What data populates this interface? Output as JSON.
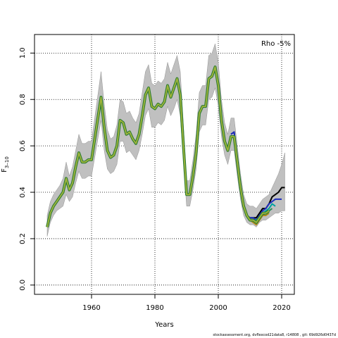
{
  "chart_data": {
    "type": "line",
    "xlabel": "Years",
    "ylabel_main": "F",
    "ylabel_sub": "3–10",
    "annotation": "Rho -5%",
    "xlim": [
      1942,
      2024
    ],
    "ylim": [
      -0.04,
      1.08
    ],
    "xticks": [
      1960,
      1980,
      2000,
      2020
    ],
    "yticks": [
      0.0,
      0.2,
      0.4,
      0.6,
      0.8,
      1.0
    ],
    "ytick_labels": [
      "0.0",
      "0.2",
      "0.4",
      "0.6",
      "0.8",
      "1.0"
    ],
    "grid": true,
    "colors": {
      "band": "#c0c0c0",
      "band_edge": "#808080",
      "main_outer": "#2e7d32",
      "main_inner": "#a0b43a"
    },
    "main": {
      "x": [
        1946,
        1947,
        1948,
        1949,
        1950,
        1951,
        1952,
        1953,
        1954,
        1955,
        1956,
        1957,
        1958,
        1959,
        1960,
        1961,
        1962,
        1963,
        1964,
        1965,
        1966,
        1967,
        1968,
        1969,
        1970,
        1971,
        1972,
        1973,
        1974,
        1975,
        1976,
        1977,
        1978,
        1979,
        1980,
        1981,
        1982,
        1983,
        1984,
        1985,
        1986,
        1987,
        1988,
        1989,
        1990,
        1991,
        1992,
        1993,
        1994,
        1995,
        1996,
        1997,
        1998,
        1999,
        2000,
        2001,
        2002,
        2003,
        2004,
        2005,
        2006,
        2007,
        2008,
        2009,
        2010,
        2011,
        2012,
        2013,
        2014,
        2015,
        2016
      ],
      "y": [
        0.25,
        0.31,
        0.34,
        0.36,
        0.38,
        0.4,
        0.46,
        0.41,
        0.44,
        0.51,
        0.57,
        0.53,
        0.53,
        0.54,
        0.54,
        0.63,
        0.72,
        0.81,
        0.68,
        0.58,
        0.55,
        0.56,
        0.6,
        0.71,
        0.7,
        0.65,
        0.66,
        0.63,
        0.61,
        0.65,
        0.73,
        0.82,
        0.85,
        0.77,
        0.76,
        0.78,
        0.77,
        0.79,
        0.86,
        0.81,
        0.85,
        0.89,
        0.82,
        0.6,
        0.39,
        0.39,
        0.47,
        0.57,
        0.74,
        0.77,
        0.77,
        0.89,
        0.9,
        0.94,
        0.86,
        0.71,
        0.62,
        0.58,
        0.64,
        0.64,
        0.53,
        0.42,
        0.34,
        0.3,
        0.28,
        0.28,
        0.27,
        0.29,
        0.31,
        0.31,
        0.32
      ],
      "lower": [
        0.21,
        0.27,
        0.3,
        0.32,
        0.33,
        0.34,
        0.39,
        0.36,
        0.38,
        0.44,
        0.49,
        0.46,
        0.46,
        0.47,
        0.47,
        0.55,
        0.63,
        0.71,
        0.58,
        0.5,
        0.48,
        0.49,
        0.52,
        0.62,
        0.62,
        0.57,
        0.58,
        0.56,
        0.54,
        0.58,
        0.65,
        0.73,
        0.76,
        0.68,
        0.68,
        0.7,
        0.69,
        0.71,
        0.77,
        0.73,
        0.76,
        0.8,
        0.73,
        0.53,
        0.34,
        0.34,
        0.41,
        0.5,
        0.66,
        0.69,
        0.69,
        0.8,
        0.81,
        0.85,
        0.77,
        0.64,
        0.56,
        0.52,
        0.58,
        0.58,
        0.47,
        0.37,
        0.3,
        0.27,
        0.26,
        0.26,
        0.25,
        0.27,
        0.28,
        0.28,
        0.29
      ],
      "upper": [
        0.3,
        0.36,
        0.39,
        0.41,
        0.43,
        0.46,
        0.53,
        0.47,
        0.51,
        0.58,
        0.65,
        0.61,
        0.61,
        0.62,
        0.62,
        0.72,
        0.82,
        0.92,
        0.78,
        0.67,
        0.63,
        0.64,
        0.69,
        0.8,
        0.79,
        0.74,
        0.75,
        0.72,
        0.7,
        0.74,
        0.83,
        0.92,
        0.95,
        0.87,
        0.86,
        0.88,
        0.87,
        0.89,
        0.96,
        0.91,
        0.95,
        0.99,
        0.92,
        0.69,
        0.45,
        0.45,
        0.54,
        0.65,
        0.83,
        0.86,
        0.86,
        0.99,
        1.0,
        1.04,
        0.96,
        0.8,
        0.7,
        0.65,
        0.72,
        0.72,
        0.6,
        0.48,
        0.39,
        0.35,
        0.34,
        0.34,
        0.33,
        0.35,
        0.37,
        0.38,
        0.39
      ]
    },
    "band_extension": {
      "x": [
        2016,
        2017,
        2018,
        2019,
        2020,
        2021
      ],
      "lower": [
        0.29,
        0.3,
        0.31,
        0.31,
        0.32,
        0.32
      ],
      "upper": [
        0.39,
        0.42,
        0.45,
        0.48,
        0.52,
        0.57
      ]
    },
    "retro_series": [
      {
        "color": "#000000",
        "x": [
          2004,
          2005,
          2006,
          2007,
          2008,
          2009,
          2010,
          2011,
          2012,
          2013,
          2014,
          2015,
          2016,
          2017,
          2018,
          2019,
          2020,
          2021
        ],
        "y": [
          0.65,
          0.66,
          0.54,
          0.43,
          0.35,
          0.3,
          0.29,
          0.29,
          0.29,
          0.31,
          0.33,
          0.33,
          0.35,
          0.38,
          0.39,
          0.4,
          0.42,
          0.42
        ]
      },
      {
        "color": "#1f2fbf",
        "x": [
          2004,
          2005,
          2006,
          2007,
          2008,
          2009,
          2010,
          2011,
          2012,
          2013,
          2014,
          2015,
          2016,
          2017,
          2018,
          2019,
          2020
        ],
        "y": [
          0.65,
          0.66,
          0.54,
          0.43,
          0.35,
          0.3,
          0.29,
          0.29,
          0.28,
          0.3,
          0.32,
          0.33,
          0.35,
          0.36,
          0.37,
          0.37,
          0.37
        ]
      },
      {
        "color": "#00a0a0",
        "x": [
          2009,
          2010,
          2011,
          2012,
          2013,
          2014,
          2015,
          2016,
          2017,
          2018
        ],
        "y": [
          0.3,
          0.28,
          0.28,
          0.28,
          0.29,
          0.31,
          0.32,
          0.33,
          0.35,
          0.34
        ]
      },
      {
        "color": "#2e8b57",
        "x": [
          2009,
          2010,
          2011,
          2012,
          2013,
          2014,
          2015,
          2016,
          2017
        ],
        "y": [
          0.3,
          0.28,
          0.28,
          0.27,
          0.29,
          0.3,
          0.31,
          0.32,
          0.33
        ]
      },
      {
        "color": "#b08a1a",
        "x": [
          2009,
          2010,
          2011,
          2012,
          2013,
          2014,
          2015,
          2016
        ],
        "y": [
          0.3,
          0.28,
          0.27,
          0.26,
          0.28,
          0.3,
          0.3,
          0.31
        ]
      }
    ]
  },
  "footer_text": "stockassessment.org, dvflexcod21data8, r14808 , git: 69d926d0437d"
}
